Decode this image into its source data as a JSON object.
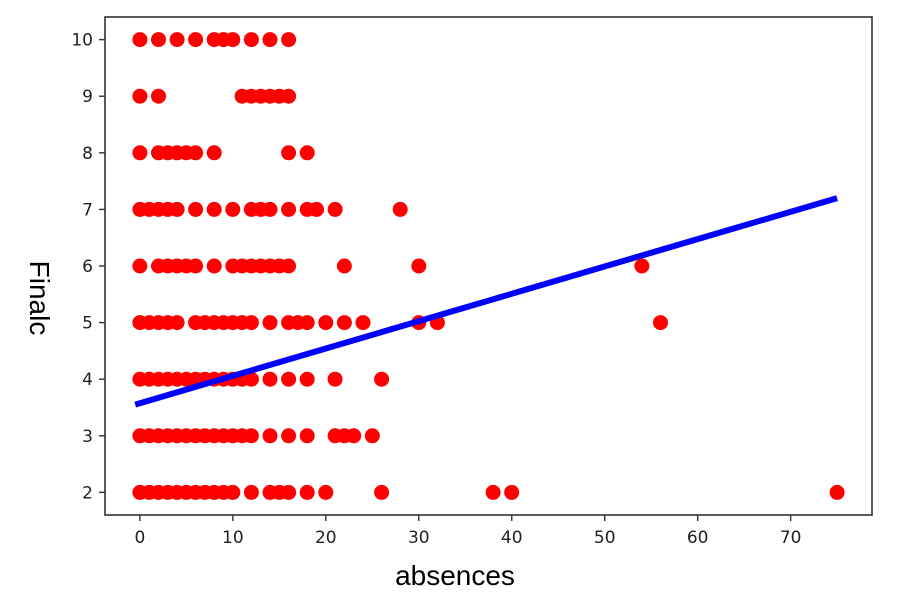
{
  "chart_data": {
    "type": "scatter",
    "title": "",
    "xlabel": "absences",
    "ylabel": "Finalc",
    "xlim": [
      -3.75,
      78.75
    ],
    "ylim": [
      1.6,
      10.4
    ],
    "xticks": [
      0,
      10,
      20,
      30,
      40,
      50,
      60,
      70
    ],
    "yticks": [
      2,
      3,
      4,
      5,
      6,
      7,
      8,
      9,
      10
    ],
    "grid": false,
    "legend": "none",
    "colors": {
      "points": "#ff0000",
      "line": "#0000ff",
      "frame": "#333333"
    },
    "series": [
      {
        "type": "scatter",
        "points": [
          [
            0,
            10
          ],
          [
            2,
            10
          ],
          [
            4,
            10
          ],
          [
            6,
            10
          ],
          [
            8,
            10
          ],
          [
            9,
            10
          ],
          [
            10,
            10
          ],
          [
            12,
            10
          ],
          [
            14,
            10
          ],
          [
            16,
            10
          ],
          [
            0,
            9
          ],
          [
            2,
            9
          ],
          [
            11,
            9
          ],
          [
            12,
            9
          ],
          [
            13,
            9
          ],
          [
            14,
            9
          ],
          [
            15,
            9
          ],
          [
            16,
            9
          ],
          [
            0,
            8
          ],
          [
            2,
            8
          ],
          [
            3,
            8
          ],
          [
            4,
            8
          ],
          [
            5,
            8
          ],
          [
            6,
            8
          ],
          [
            8,
            8
          ],
          [
            16,
            8
          ],
          [
            18,
            8
          ],
          [
            0,
            7
          ],
          [
            1,
            7
          ],
          [
            2,
            7
          ],
          [
            3,
            7
          ],
          [
            4,
            7
          ],
          [
            6,
            7
          ],
          [
            8,
            7
          ],
          [
            10,
            7
          ],
          [
            12,
            7
          ],
          [
            13,
            7
          ],
          [
            14,
            7
          ],
          [
            16,
            7
          ],
          [
            18,
            7
          ],
          [
            19,
            7
          ],
          [
            21,
            7
          ],
          [
            28,
            7
          ],
          [
            0,
            6
          ],
          [
            2,
            6
          ],
          [
            3,
            6
          ],
          [
            4,
            6
          ],
          [
            5,
            6
          ],
          [
            6,
            6
          ],
          [
            8,
            6
          ],
          [
            10,
            6
          ],
          [
            11,
            6
          ],
          [
            12,
            6
          ],
          [
            13,
            6
          ],
          [
            14,
            6
          ],
          [
            15,
            6
          ],
          [
            16,
            6
          ],
          [
            22,
            6
          ],
          [
            30,
            6
          ],
          [
            54,
            6
          ],
          [
            0,
            5
          ],
          [
            1,
            5
          ],
          [
            2,
            5
          ],
          [
            3,
            5
          ],
          [
            4,
            5
          ],
          [
            6,
            5
          ],
          [
            7,
            5
          ],
          [
            8,
            5
          ],
          [
            9,
            5
          ],
          [
            10,
            5
          ],
          [
            11,
            5
          ],
          [
            12,
            5
          ],
          [
            14,
            5
          ],
          [
            16,
            5
          ],
          [
            17,
            5
          ],
          [
            18,
            5
          ],
          [
            20,
            5
          ],
          [
            22,
            5
          ],
          [
            24,
            5
          ],
          [
            30,
            5
          ],
          [
            32,
            5
          ],
          [
            56,
            5
          ],
          [
            0,
            4
          ],
          [
            1,
            4
          ],
          [
            2,
            4
          ],
          [
            3,
            4
          ],
          [
            4,
            4
          ],
          [
            5,
            4
          ],
          [
            6,
            4
          ],
          [
            7,
            4
          ],
          [
            8,
            4
          ],
          [
            9,
            4
          ],
          [
            10,
            4
          ],
          [
            11,
            4
          ],
          [
            12,
            4
          ],
          [
            14,
            4
          ],
          [
            16,
            4
          ],
          [
            18,
            4
          ],
          [
            21,
            4
          ],
          [
            26,
            4
          ],
          [
            0,
            3
          ],
          [
            1,
            3
          ],
          [
            2,
            3
          ],
          [
            3,
            3
          ],
          [
            4,
            3
          ],
          [
            5,
            3
          ],
          [
            6,
            3
          ],
          [
            7,
            3
          ],
          [
            8,
            3
          ],
          [
            9,
            3
          ],
          [
            10,
            3
          ],
          [
            11,
            3
          ],
          [
            12,
            3
          ],
          [
            14,
            3
          ],
          [
            16,
            3
          ],
          [
            18,
            3
          ],
          [
            21,
            3
          ],
          [
            22,
            3
          ],
          [
            23,
            3
          ],
          [
            25,
            3
          ],
          [
            0,
            2
          ],
          [
            1,
            2
          ],
          [
            2,
            2
          ],
          [
            3,
            2
          ],
          [
            4,
            2
          ],
          [
            5,
            2
          ],
          [
            6,
            2
          ],
          [
            7,
            2
          ],
          [
            8,
            2
          ],
          [
            9,
            2
          ],
          [
            10,
            2
          ],
          [
            12,
            2
          ],
          [
            14,
            2
          ],
          [
            15,
            2
          ],
          [
            16,
            2
          ],
          [
            18,
            2
          ],
          [
            20,
            2
          ],
          [
            26,
            2
          ],
          [
            38,
            2
          ],
          [
            40,
            2
          ],
          [
            75,
            2
          ]
        ]
      },
      {
        "type": "line",
        "points": [
          [
            -0.5,
            3.55
          ],
          [
            75,
            7.2
          ]
        ]
      }
    ]
  }
}
